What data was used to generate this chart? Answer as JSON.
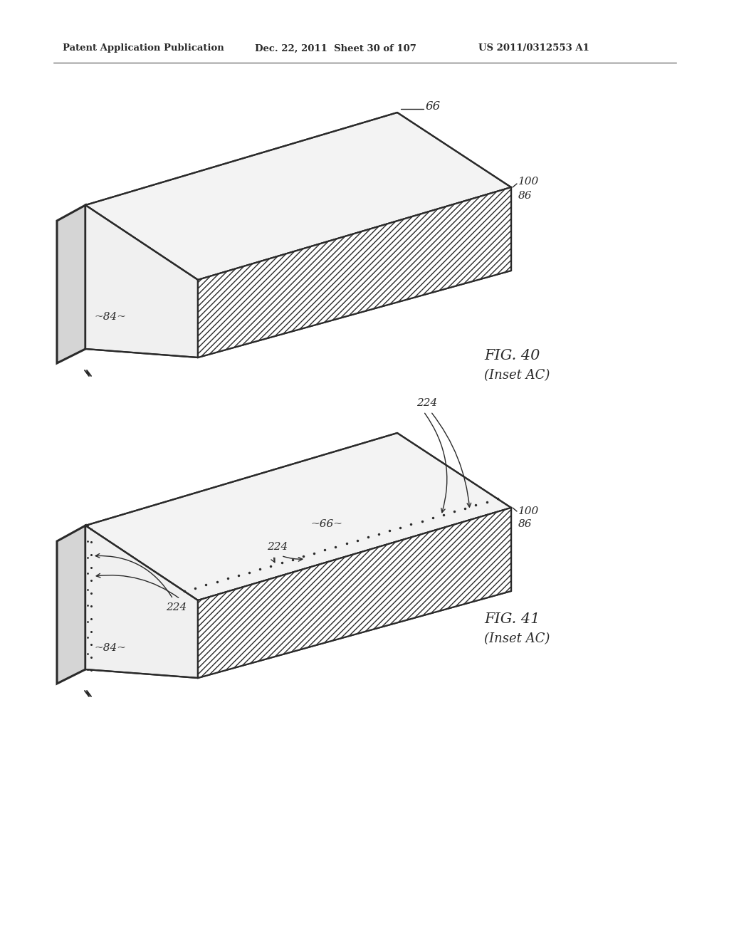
{
  "header_left": "Patent Application Publication",
  "header_mid": "Dec. 22, 2011  Sheet 30 of 107",
  "header_right": "US 2011/0312553 A1",
  "fig1_caption": "FIG. 40",
  "fig1_sub": "(Inset AC)",
  "fig2_caption": "FIG. 41",
  "fig2_sub": "(Inset AC)",
  "bg_color": "#ffffff",
  "line_color": "#2a2a2a"
}
